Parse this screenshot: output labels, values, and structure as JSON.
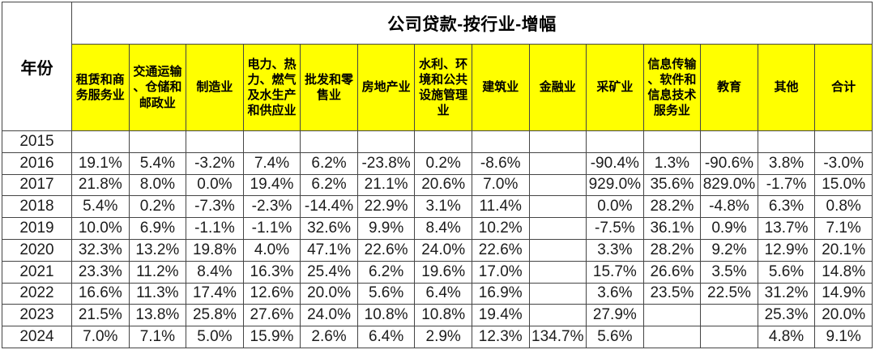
{
  "chart_data": {
    "type": "table",
    "title": "公司贷款-按行业-增幅",
    "row_label": "年份",
    "columns": [
      "租赁和商务服务业",
      "交通运输、仓储和邮政业",
      "制造业",
      "电力、热力、燃气及水生产和供应业",
      "批发和零售业",
      "房地产业",
      "水利、环境和公共设施管理业",
      "建筑业",
      "金融业",
      "采矿业",
      "信息传输、软件和信息技术服务业",
      "教育",
      "其他",
      "合计"
    ],
    "rows": [
      {
        "year": "2015",
        "values": [
          "",
          "",
          "",
          "",
          "",
          "",
          "",
          "",
          "",
          "",
          "",
          "",
          "",
          ""
        ]
      },
      {
        "year": "2016",
        "values": [
          "19.1%",
          "5.4%",
          "-3.2%",
          "7.4%",
          "6.2%",
          "-23.8%",
          "0.2%",
          "-8.6%",
          "",
          "-90.4%",
          "1.3%",
          "-90.6%",
          "3.8%",
          "-3.0%"
        ]
      },
      {
        "year": "2017",
        "values": [
          "21.8%",
          "8.0%",
          "0.0%",
          "19.4%",
          "6.2%",
          "21.1%",
          "20.6%",
          "7.0%",
          "",
          "929.0%",
          "35.6%",
          "829.0%",
          "-1.7%",
          "15.0%"
        ]
      },
      {
        "year": "2018",
        "values": [
          "5.4%",
          "0.2%",
          "-7.3%",
          "-2.3%",
          "-14.4%",
          "22.9%",
          "3.1%",
          "11.4%",
          "",
          "0.0%",
          "28.2%",
          "-4.8%",
          "6.3%",
          "0.8%"
        ]
      },
      {
        "year": "2019",
        "values": [
          "10.0%",
          "6.9%",
          "-1.1%",
          "-1.1%",
          "32.6%",
          "9.9%",
          "8.4%",
          "10.2%",
          "",
          "-7.5%",
          "36.1%",
          "0.9%",
          "13.7%",
          "7.1%"
        ]
      },
      {
        "year": "2020",
        "values": [
          "32.3%",
          "13.2%",
          "19.8%",
          "4.0%",
          "47.1%",
          "22.6%",
          "24.0%",
          "22.6%",
          "",
          "3.3%",
          "28.2%",
          "9.2%",
          "12.9%",
          "20.1%"
        ]
      },
      {
        "year": "2021",
        "values": [
          "23.3%",
          "11.2%",
          "8.4%",
          "16.3%",
          "25.4%",
          "6.2%",
          "19.6%",
          "17.0%",
          "",
          "15.7%",
          "26.6%",
          "3.5%",
          "5.6%",
          "14.8%"
        ]
      },
      {
        "year": "2022",
        "values": [
          "16.6%",
          "11.3%",
          "17.4%",
          "12.6%",
          "20.0%",
          "5.6%",
          "6.4%",
          "16.9%",
          "",
          "3.6%",
          "23.5%",
          "22.5%",
          "31.2%",
          "14.9%"
        ]
      },
      {
        "year": "2023",
        "values": [
          "21.5%",
          "13.8%",
          "25.8%",
          "27.6%",
          "24.0%",
          "10.8%",
          "10.8%",
          "19.4%",
          "",
          "27.9%",
          "",
          "",
          "25.3%",
          "20.0%"
        ]
      },
      {
        "year": "2024",
        "values": [
          "7.0%",
          "7.1%",
          "5.0%",
          "15.9%",
          "2.6%",
          "6.4%",
          "2.9%",
          "12.3%",
          "134.7%",
          "5.6%",
          "",
          "",
          "4.8%",
          "9.1%"
        ]
      }
    ],
    "layout": {
      "header_bg": "#ffff00",
      "border_color": "#454545",
      "text_color": "#000000"
    }
  }
}
